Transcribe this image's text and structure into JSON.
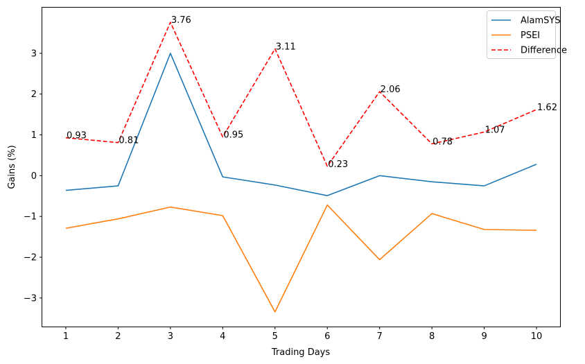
{
  "chart_data": {
    "type": "line",
    "x": [
      1,
      2,
      3,
      4,
      5,
      6,
      7,
      8,
      9,
      10
    ],
    "series": [
      {
        "name": "AlamSYS",
        "color": "#1f77b4",
        "style": "solid",
        "values": [
          -0.36,
          -0.25,
          3.0,
          -0.03,
          -0.23,
          -0.49,
          0.0,
          -0.15,
          -0.25,
          0.28
        ]
      },
      {
        "name": "PSEI",
        "color": "#ff7f0e",
        "style": "solid",
        "values": [
          -1.29,
          -1.06,
          -0.77,
          -0.98,
          -3.34,
          -0.72,
          -2.06,
          -0.93,
          -1.32,
          -1.34
        ]
      },
      {
        "name": "Difference",
        "color": "#ff0000",
        "style": "dashed",
        "values": [
          0.93,
          0.81,
          3.76,
          0.95,
          3.11,
          0.23,
          2.06,
          0.78,
          1.07,
          1.62
        ]
      }
    ],
    "annotations": [
      "0.93",
      "0.81",
      "3.76",
      "0.95",
      "3.11",
      "0.23",
      "2.06",
      "0.78",
      "1.07",
      "1.62"
    ],
    "xlabel": "Trading Days",
    "ylabel": "Gains (%)",
    "x_ticks": [
      "1",
      "2",
      "3",
      "4",
      "5",
      "6",
      "7",
      "8",
      "9",
      "10"
    ],
    "y_ticks": [
      "−3",
      "−2",
      "−1",
      "0",
      "1",
      "2",
      "3"
    ],
    "y_tick_values": [
      -3,
      -2,
      -1,
      0,
      1,
      2,
      3
    ],
    "xlim": [
      0.55,
      10.45
    ],
    "ylim": [
      -3.7,
      4.12
    ],
    "grid": false,
    "legend_position": "top-right"
  }
}
